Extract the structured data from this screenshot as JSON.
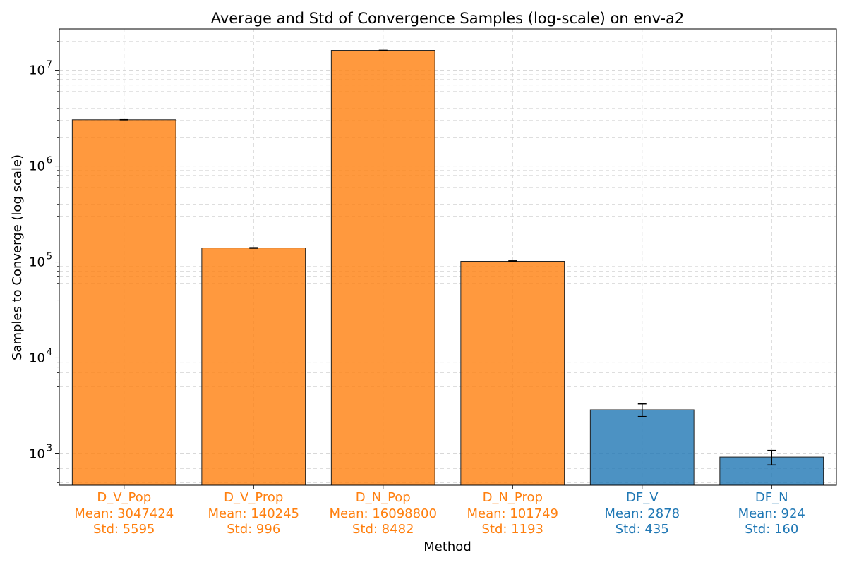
{
  "chart_data": {
    "type": "bar",
    "title": "Average and Std of Convergence Samples (log-scale) on env-a2",
    "xlabel": "Method",
    "ylabel": "Samples to Converge (log scale)",
    "yscale": "log",
    "ylim": [
      470,
      27000000
    ],
    "y_ticks": [
      {
        "value": 1000,
        "base": "10",
        "exp": "3"
      },
      {
        "value": 10000,
        "base": "10",
        "exp": "4"
      },
      {
        "value": 100000,
        "base": "10",
        "exp": "5"
      },
      {
        "value": 1000000,
        "base": "10",
        "exp": "6"
      },
      {
        "value": 10000000,
        "base": "10",
        "exp": "7"
      }
    ],
    "grid": true,
    "categories": [
      {
        "name": "D_V_Pop",
        "mean_label": "Mean: 3047424",
        "std_label": "Std: 5595",
        "mean": 3047424,
        "std": 5595,
        "color": "#ff7f0e"
      },
      {
        "name": "D_V_Prop",
        "mean_label": "Mean: 140245",
        "std_label": "Std: 996",
        "mean": 140245,
        "std": 996,
        "color": "#ff7f0e"
      },
      {
        "name": "D_N_Pop",
        "mean_label": "Mean: 16098800",
        "std_label": "Std: 8482",
        "mean": 16098800,
        "std": 8482,
        "color": "#ff7f0e"
      },
      {
        "name": "D_N_Prop",
        "mean_label": "Mean: 101749",
        "std_label": "Std: 1193",
        "mean": 101749,
        "std": 1193,
        "color": "#ff7f0e"
      },
      {
        "name": "DF_V",
        "mean_label": "Mean: 2878",
        "std_label": "Std: 435",
        "mean": 2878,
        "std": 435,
        "color": "#1f77b4"
      },
      {
        "name": "DF_N",
        "mean_label": "Mean: 924",
        "std_label": "Std: 160",
        "mean": 924,
        "std": 160,
        "color": "#1f77b4"
      }
    ]
  }
}
